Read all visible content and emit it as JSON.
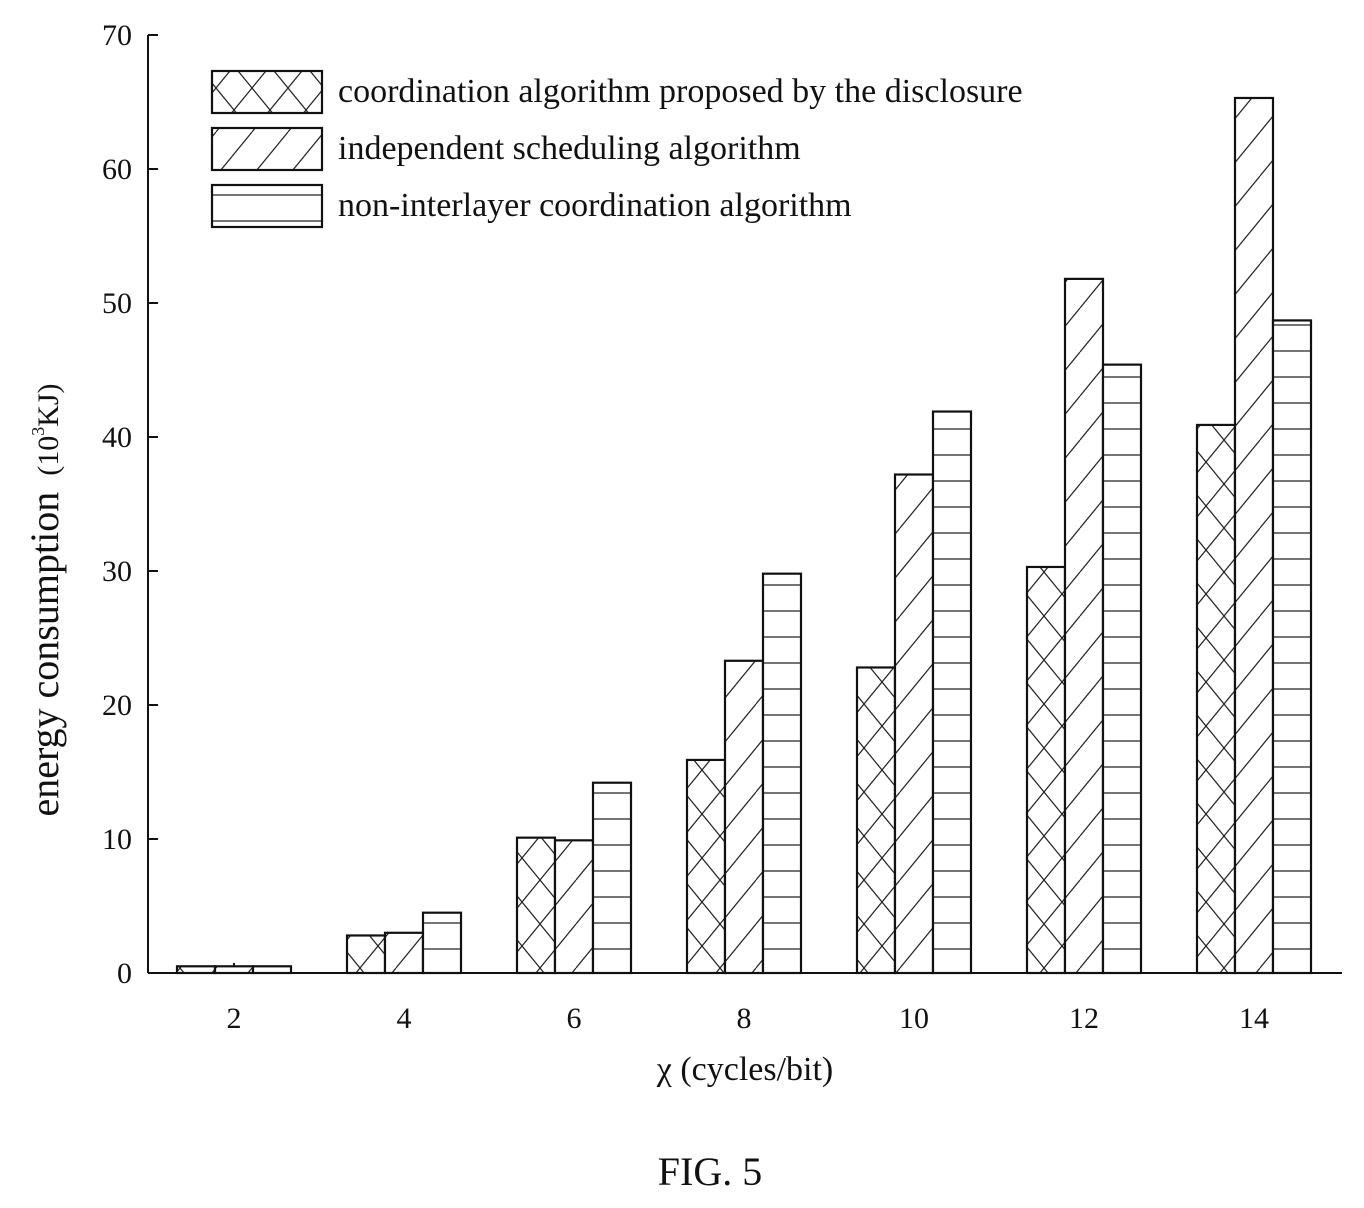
{
  "chart_data": {
    "type": "bar",
    "categories": [
      "2",
      "4",
      "6",
      "8",
      "10",
      "12",
      "14"
    ],
    "series": [
      {
        "name": "coordination algorithm proposed by the disclosure",
        "pattern": "crosshatch",
        "values": [
          0.5,
          2.8,
          10.1,
          15.9,
          22.8,
          30.3,
          40.9
        ]
      },
      {
        "name": "independent scheduling algorithm",
        "pattern": "diagonal",
        "values": [
          0.5,
          3.0,
          9.9,
          23.3,
          37.2,
          51.8,
          65.3
        ]
      },
      {
        "name": "non-interlayer coordination algorithm",
        "pattern": "horizontal",
        "values": [
          0.5,
          4.5,
          14.2,
          29.8,
          41.9,
          45.4,
          48.7
        ]
      }
    ],
    "xlabel": "χ (cycles/bit)",
    "ylabel_main": "energy consumption",
    "ylabel_unit_base": "(10",
    "ylabel_unit_exp": "3",
    "ylabel_unit_rest": "KJ)",
    "ylim": [
      0,
      70
    ],
    "yticks": [
      0,
      10,
      20,
      30,
      40,
      50,
      60,
      70
    ],
    "legend_position": "top-left",
    "grid": false,
    "colors": {
      "stroke": "#111111",
      "fill": "#ffffff"
    }
  },
  "caption": "FIG. 5"
}
